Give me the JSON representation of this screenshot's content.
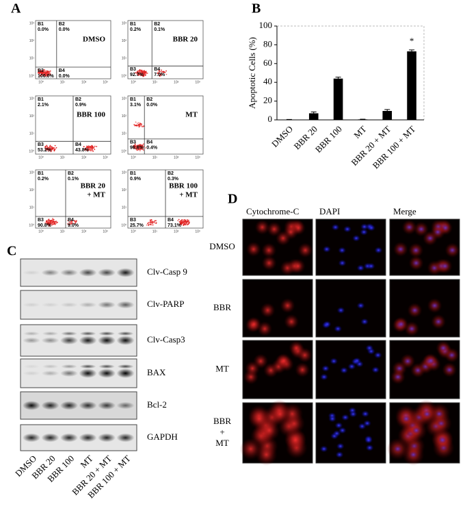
{
  "panel_labels": [
    "A",
    "B",
    "C",
    "D"
  ],
  "flow": {
    "quadrant_names": [
      "B1",
      "B2",
      "B3",
      "B4"
    ],
    "log_ticks": [
      "10⁰",
      "10¹",
      "10²",
      "10³"
    ],
    "plots": [
      {
        "title": [
          "DMSO"
        ],
        "quadrants": [
          "0.0%",
          "0.0%",
          "100.0%",
          "0.0%"
        ]
      },
      {
        "title": [
          "BBR 20"
        ],
        "quadrants": [
          "0.2%",
          "0.1%",
          "92.7%",
          "7.0%"
        ]
      },
      {
        "title": [
          "BBR 100"
        ],
        "quadrants": [
          "2.1%",
          "0.9%",
          "53.2%",
          "43.8%"
        ]
      },
      {
        "title": [
          "MT"
        ],
        "quadrants": [
          "3.1%",
          "0.0%",
          "96.6%",
          "0.4%"
        ]
      },
      {
        "title": [
          "BBR 20",
          "+ MT"
        ],
        "quadrants": [
          "0.2%",
          "0.1%",
          "90.8%",
          "9.0%"
        ]
      },
      {
        "title": [
          "BBR 100",
          "+ MT"
        ],
        "quadrants": [
          "0.9%",
          "0.3%",
          "25.7%",
          "73.1%"
        ]
      }
    ]
  },
  "chart_data": {
    "type": "bar",
    "y_label": "Apoptotic Cells (%)",
    "categories": [
      "DMSO",
      "BBR 20",
      "BBR 100",
      "MT",
      "BBR 20 + MT",
      "BBR 100 + MT"
    ],
    "values": [
      0.3,
      7,
      44,
      0.5,
      9.5,
      73
    ],
    "errors": [
      0.2,
      1.5,
      1.5,
      0.2,
      1.5,
      1.5
    ],
    "color": "#000000",
    "ylim": [
      0,
      100
    ],
    "yticks": [
      0,
      20,
      40,
      60,
      80,
      100
    ],
    "annotation": "*"
  },
  "blot": {
    "proteins": [
      "Clv-Casp 9",
      "Clv-PARP",
      "Clv-Casp3",
      "BAX",
      "Bcl-2",
      "GAPDH"
    ],
    "lanes": [
      "DMSO",
      "BBR 20",
      "BBR 100",
      "MT",
      "BBR 20 + MT",
      "BBR 100 + MT"
    ]
  },
  "microscopy": {
    "columns": [
      "Cytochrome-C",
      "DAPI",
      "Merge"
    ],
    "rows": [
      [
        "DMSO"
      ],
      [
        "BBR"
      ],
      [
        "MT"
      ],
      [
        "BBR",
        "+",
        "MT"
      ]
    ]
  }
}
